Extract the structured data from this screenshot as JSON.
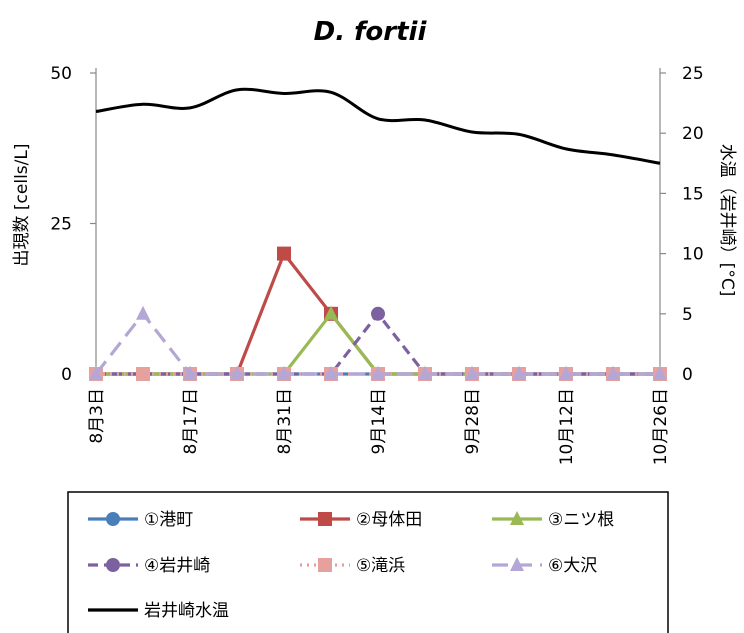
{
  "chart_data": {
    "type": "line",
    "title": "D. fortii",
    "ylabel": "出現数 [cells/L]",
    "y2label": "水温（岩井崎）[°C]",
    "ylim": [
      0,
      50
    ],
    "y2lim": [
      0,
      25
    ],
    "yticks": [
      0,
      25,
      50
    ],
    "y2ticks": [
      0,
      5,
      10,
      15,
      20,
      25
    ],
    "x": [
      "8月3日",
      "8月10日",
      "8月17日",
      "8月24日",
      "8月31日",
      "9月7日",
      "9月14日",
      "9月21日",
      "9月28日",
      "10月5日",
      "10月12日",
      "10月19日",
      "10月26日"
    ],
    "xtick_labels": [
      "8月3日",
      "8月17日",
      "8月31日",
      "9月14日",
      "9月28日",
      "10月12日",
      "10月26日"
    ],
    "series": [
      {
        "name": "①港町",
        "color": "#4a7ebb",
        "marker": "circle",
        "dash": "solid",
        "axis": "left",
        "values": [
          0,
          null,
          0,
          0,
          0,
          0,
          0,
          0,
          0,
          0,
          0,
          0,
          0
        ]
      },
      {
        "name": "②母体田",
        "color": "#be4b48",
        "marker": "square",
        "dash": "solid",
        "axis": "left",
        "values": [
          0,
          null,
          0,
          0,
          20,
          10,
          0,
          0,
          0,
          0,
          0,
          0,
          0
        ]
      },
      {
        "name": "③ニツ根",
        "color": "#98b954",
        "marker": "triangle",
        "dash": "solid",
        "axis": "left",
        "values": [
          0,
          null,
          0,
          0,
          0,
          10,
          0,
          0,
          0,
          0,
          0,
          0,
          0
        ]
      },
      {
        "name": "④岩井崎",
        "color": "#7d60a0",
        "marker": "circle",
        "dash": "dash",
        "axis": "left",
        "values": [
          0,
          null,
          0,
          0,
          0,
          0,
          10,
          0,
          0,
          0,
          0,
          0,
          0
        ]
      },
      {
        "name": "⑤滝浜",
        "color": "#e6a09e",
        "marker": "square",
        "dash": "dot",
        "axis": "left",
        "values": [
          0,
          0,
          0,
          0,
          0,
          0,
          0,
          0,
          0,
          0,
          0,
          0,
          0
        ]
      },
      {
        "name": "⑥大沢",
        "color": "#b4a7d6",
        "marker": "triangle",
        "dash": "longdash",
        "axis": "left",
        "values": [
          0,
          10,
          0,
          0,
          0,
          0,
          0,
          0,
          0,
          0,
          0,
          0,
          0
        ]
      },
      {
        "name": "岩井崎水温",
        "color": "#000000",
        "marker": "none",
        "dash": "solid",
        "axis": "right",
        "values": [
          21.8,
          22.4,
          22.1,
          23.6,
          23.3,
          23.4,
          21.2,
          21.1,
          20.1,
          19.9,
          18.7,
          18.2,
          17.5
        ]
      }
    ],
    "legend_placement": "bottom"
  }
}
